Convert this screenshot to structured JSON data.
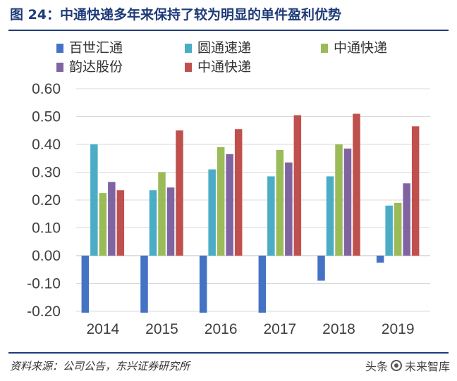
{
  "figure": {
    "title": "图 24：中通快递多年来保持了较为明显的单件盈利优势",
    "source": "资料来源：公司公告，东兴证券研究所",
    "watermark_prefix": "头条",
    "watermark_name": "未来智库"
  },
  "chart_data": {
    "type": "bar",
    "title": "图 24：中通快递多年来保持了较为明显的单件盈利优势",
    "xlabel": "",
    "ylabel": "",
    "categories": [
      "2014",
      "2015",
      "2016",
      "2017",
      "2018",
      "2019"
    ],
    "ylim": [
      -0.2,
      0.6
    ],
    "yticks": [
      0.6,
      0.5,
      0.4,
      0.3,
      0.2,
      0.1,
      0.0,
      -0.1,
      -0.2
    ],
    "ytick_labels": [
      "0.60",
      "0.50",
      "0.40",
      "0.30",
      "0.20",
      "0.10",
      "0.00",
      "-0.10",
      "-0.20"
    ],
    "grid": true,
    "legend_position": "top",
    "series": [
      {
        "name": "百世汇通",
        "color": "#4472c4",
        "values": [
          -0.205,
          -0.205,
          -0.205,
          -0.205,
          -0.09,
          -0.025
        ]
      },
      {
        "name": "圆通速递",
        "color": "#4bacc6",
        "values": [
          0.4,
          0.235,
          0.31,
          0.285,
          0.285,
          0.18
        ]
      },
      {
        "name": "中通快递",
        "color": "#9bbb59",
        "values": [
          0.225,
          0.3,
          0.39,
          0.38,
          0.4,
          0.19
        ]
      },
      {
        "name": "韵达股份",
        "color": "#8064a2",
        "values": [
          0.265,
          0.245,
          0.365,
          0.335,
          0.385,
          0.26
        ]
      },
      {
        "name": "中通快递",
        "color": "#c0504d",
        "values": [
          0.235,
          0.45,
          0.455,
          0.505,
          0.51,
          0.465
        ]
      }
    ]
  }
}
